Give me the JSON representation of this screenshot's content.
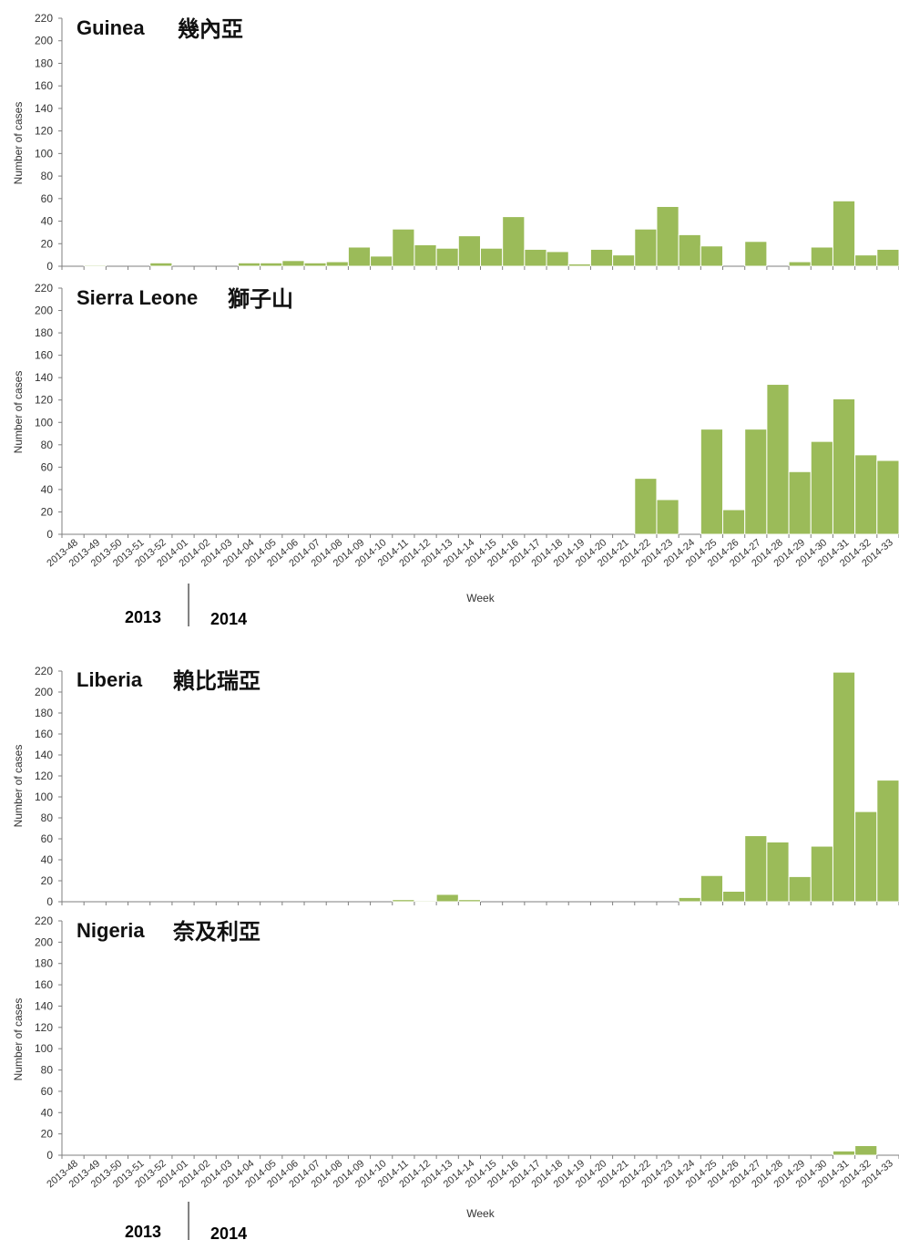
{
  "chart_data": [
    {
      "type": "bar",
      "title": "Guinea",
      "title_local": "幾內亞",
      "ylabel": "Number of cases",
      "ylim": [
        0,
        220
      ],
      "yticks": [
        0,
        20,
        40,
        60,
        80,
        100,
        120,
        140,
        160,
        180,
        200,
        220
      ],
      "bar_color": "#9bbb59",
      "grid": false,
      "categories": [
        "2013-48",
        "2013-49",
        "2013-50",
        "2013-51",
        "2013-52",
        "2014-01",
        "2014-02",
        "2014-03",
        "2014-04",
        "2014-05",
        "2014-06",
        "2014-07",
        "2014-08",
        "2014-09",
        "2014-10",
        "2014-11",
        "2014-12",
        "2014-13",
        "2014-14",
        "2014-15",
        "2014-16",
        "2014-17",
        "2014-18",
        "2014-19",
        "2014-20",
        "2014-21",
        "2014-22",
        "2014-23",
        "2014-24",
        "2014-25",
        "2014-26",
        "2014-27",
        "2014-28",
        "2014-29",
        "2014-30",
        "2014-31",
        "2014-32",
        "2014-33"
      ],
      "values": [
        0,
        1,
        0,
        0,
        3,
        0,
        0,
        0,
        3,
        3,
        5,
        3,
        4,
        17,
        9,
        33,
        19,
        16,
        27,
        16,
        44,
        15,
        13,
        2,
        15,
        10,
        33,
        53,
        28,
        18,
        0,
        22,
        0,
        4,
        17,
        58,
        10,
        15
      ]
    },
    {
      "type": "bar",
      "title": "Sierra Leone",
      "title_local": "獅子山",
      "ylabel": "Number of cases",
      "xlabel": "Week",
      "ylim": [
        0,
        220
      ],
      "yticks": [
        0,
        20,
        40,
        60,
        80,
        100,
        120,
        140,
        160,
        180,
        200,
        220
      ],
      "bar_color": "#9bbb59",
      "grid": false,
      "year_labels": [
        "2013",
        "2014"
      ],
      "categories": [
        "2013-48",
        "2013-49",
        "2013-50",
        "2013-51",
        "2013-52",
        "2014-01",
        "2014-02",
        "2014-03",
        "2014-04",
        "2014-05",
        "2014-06",
        "2014-07",
        "2014-08",
        "2014-09",
        "2014-10",
        "2014-11",
        "2014-12",
        "2014-13",
        "2014-14",
        "2014-15",
        "2014-16",
        "2014-17",
        "2014-18",
        "2014-19",
        "2014-20",
        "2014-21",
        "2014-22",
        "2014-23",
        "2014-24",
        "2014-25",
        "2014-26",
        "2014-27",
        "2014-28",
        "2014-29",
        "2014-30",
        "2014-31",
        "2014-32",
        "2014-33"
      ],
      "values": [
        0,
        0,
        0,
        0,
        0,
        0,
        0,
        0,
        0,
        0,
        0,
        0,
        0,
        0,
        0,
        0,
        0,
        0,
        0,
        0,
        0,
        0,
        0,
        0,
        0,
        0,
        50,
        31,
        0,
        94,
        22,
        94,
        134,
        56,
        83,
        121,
        71,
        66
      ]
    },
    {
      "type": "bar",
      "title": "Liberia",
      "title_local": "賴比瑞亞",
      "ylabel": "Number of cases",
      "ylim": [
        0,
        220
      ],
      "yticks": [
        0,
        20,
        40,
        60,
        80,
        100,
        120,
        140,
        160,
        180,
        200,
        220
      ],
      "bar_color": "#9bbb59",
      "grid": false,
      "categories": [
        "2013-48",
        "2013-49",
        "2013-50",
        "2013-51",
        "2013-52",
        "2014-01",
        "2014-02",
        "2014-03",
        "2014-04",
        "2014-05",
        "2014-06",
        "2014-07",
        "2014-08",
        "2014-09",
        "2014-10",
        "2014-11",
        "2014-12",
        "2014-13",
        "2014-14",
        "2014-15",
        "2014-16",
        "2014-17",
        "2014-18",
        "2014-19",
        "2014-20",
        "2014-21",
        "2014-22",
        "2014-23",
        "2014-24",
        "2014-25",
        "2014-26",
        "2014-27",
        "2014-28",
        "2014-29",
        "2014-30",
        "2014-31",
        "2014-32",
        "2014-33"
      ],
      "values": [
        0,
        0,
        0,
        0,
        0,
        0,
        0,
        0,
        0,
        0,
        0,
        0,
        0,
        0,
        0,
        2,
        1,
        7,
        2,
        0,
        0,
        0,
        0,
        0,
        0,
        0,
        0,
        0,
        4,
        25,
        10,
        63,
        57,
        24,
        53,
        219,
        86,
        116
      ]
    },
    {
      "type": "bar",
      "title": "Nigeria",
      "title_local": "奈及利亞",
      "ylabel": "Number of cases",
      "xlabel": "Week",
      "ylim": [
        0,
        220
      ],
      "yticks": [
        0,
        20,
        40,
        60,
        80,
        100,
        120,
        140,
        160,
        180,
        200,
        220
      ],
      "bar_color": "#9bbb59",
      "grid": false,
      "year_labels": [
        "2013",
        "2014"
      ],
      "categories": [
        "2013-48",
        "2013-49",
        "2013-50",
        "2013-51",
        "2013-52",
        "2014-01",
        "2014-02",
        "2014-03",
        "2014-04",
        "2014-05",
        "2014-06",
        "2014-07",
        "2014-08",
        "2014-09",
        "2014-10",
        "2014-11",
        "2014-12",
        "2014-13",
        "2014-14",
        "2014-15",
        "2014-16",
        "2014-17",
        "2014-18",
        "2014-19",
        "2014-20",
        "2014-21",
        "2014-22",
        "2014-23",
        "2014-24",
        "2014-25",
        "2014-26",
        "2014-27",
        "2014-28",
        "2014-29",
        "2014-30",
        "2014-31",
        "2014-32",
        "2014-33"
      ],
      "values": [
        0,
        0,
        0,
        0,
        0,
        0,
        0,
        0,
        0,
        0,
        0,
        0,
        0,
        0,
        0,
        0,
        0,
        0,
        0,
        0,
        0,
        0,
        0,
        0,
        0,
        0,
        0,
        0,
        0,
        0,
        0,
        0,
        0,
        0,
        0,
        4,
        9,
        0
      ]
    }
  ]
}
